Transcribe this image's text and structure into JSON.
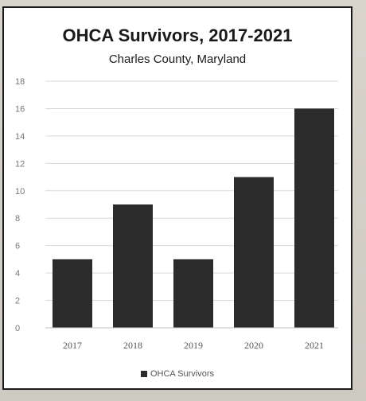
{
  "chart_data": {
    "type": "bar",
    "title": "OHCA Survivors, 2017-2021",
    "subtitle": "Charles County, Maryland",
    "categories": [
      "2017",
      "2018",
      "2019",
      "2020",
      "2021"
    ],
    "series": [
      {
        "name": "OHCA Survivors",
        "values": [
          5,
          9,
          5,
          11,
          16
        ]
      }
    ],
    "ylim": [
      0,
      18
    ],
    "yticks": [
      "0",
      "2",
      "4",
      "6",
      "8",
      "10",
      "12",
      "14",
      "16",
      "18"
    ],
    "grid": true,
    "legend_position": "bottom",
    "bar_color": "#2b2b2b"
  }
}
